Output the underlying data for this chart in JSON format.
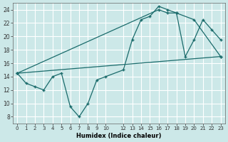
{
  "xlabel": "Humidex (Indice chaleur)",
  "bg_color": "#cce8e8",
  "grid_color": "#ffffff",
  "line_color": "#1a6b6b",
  "xlim": [
    -0.5,
    23.5
  ],
  "ylim": [
    7,
    25
  ],
  "xticks": [
    0,
    1,
    2,
    3,
    4,
    5,
    6,
    7,
    8,
    9,
    10,
    12,
    13,
    14,
    15,
    16,
    17,
    18,
    19,
    20,
    21,
    22,
    23
  ],
  "yticks": [
    8,
    10,
    12,
    14,
    16,
    18,
    20,
    22,
    24
  ],
  "line1_x": [
    0,
    1,
    2,
    3,
    4,
    5,
    6,
    7,
    8,
    9,
    10,
    12,
    13,
    14,
    15,
    16,
    17,
    18,
    19,
    20,
    21,
    22,
    23
  ],
  "line1_y": [
    14.5,
    13,
    12.5,
    12,
    14,
    14.5,
    9.5,
    8,
    10,
    13.5,
    14,
    15,
    19.5,
    22.5,
    23,
    24.5,
    24,
    23.5,
    17,
    19.5,
    22.5,
    21,
    19.5
  ],
  "line2_x": [
    0,
    16,
    17,
    18,
    20,
    23
  ],
  "line2_y": [
    14.5,
    24,
    23.5,
    23.5,
    22.5,
    17
  ],
  "line3_x": [
    0,
    23
  ],
  "line3_y": [
    14.5,
    17
  ]
}
